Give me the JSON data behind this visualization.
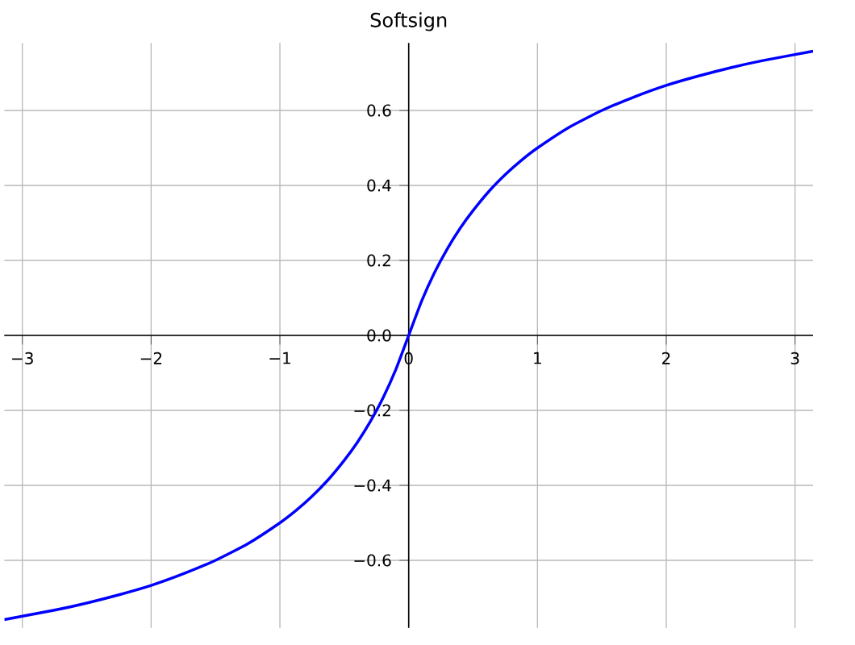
{
  "chart_data": {
    "type": "line",
    "title": "Softsign",
    "x": [
      -3.14,
      -2.75,
      -2.5,
      -2.25,
      -2,
      -1.75,
      -1.5,
      -1.25,
      -1,
      -0.875,
      -0.75,
      -0.625,
      -0.5,
      -0.4,
      -0.3,
      -0.2,
      -0.1,
      0,
      0.1,
      0.2,
      0.3,
      0.4,
      0.5,
      0.625,
      0.75,
      0.875,
      1,
      1.25,
      1.5,
      1.75,
      2,
      2.25,
      2.5,
      2.75,
      3.14
    ],
    "series": [
      {
        "color": "#0000ff",
        "values": [
          -0.758,
          -0.733,
          -0.714,
          -0.692,
          -0.667,
          -0.636,
          -0.6,
          -0.556,
          -0.5,
          -0.467,
          -0.429,
          -0.385,
          -0.333,
          -0.286,
          -0.231,
          -0.167,
          -0.091,
          0,
          0.091,
          0.167,
          0.231,
          0.286,
          0.333,
          0.385,
          0.429,
          0.467,
          0.5,
          0.556,
          0.6,
          0.636,
          0.667,
          0.692,
          0.714,
          0.733,
          0.758
        ]
      }
    ],
    "xlim": [
      -3.14,
      3.14
    ],
    "ylim": [
      -0.78,
      0.78
    ],
    "xticks": [
      {
        "value": -3,
        "label": "−3"
      },
      {
        "value": -2,
        "label": "−2"
      },
      {
        "value": -1,
        "label": "−1"
      },
      0,
      1,
      2,
      3
    ],
    "yticks": [
      {
        "value": -0.6,
        "label": "−0.6"
      },
      {
        "value": -0.4,
        "label": "−0.4"
      },
      {
        "value": -0.2,
        "label": "−0.2"
      },
      {
        "value": 0,
        "label": "0.0"
      },
      {
        "value": 0.2,
        "label": "0.2"
      },
      {
        "value": 0.4,
        "label": "0.4"
      },
      {
        "value": 0.6,
        "label": "0.6"
      }
    ],
    "grid": true,
    "marker": "none",
    "line_style": "solid"
  }
}
